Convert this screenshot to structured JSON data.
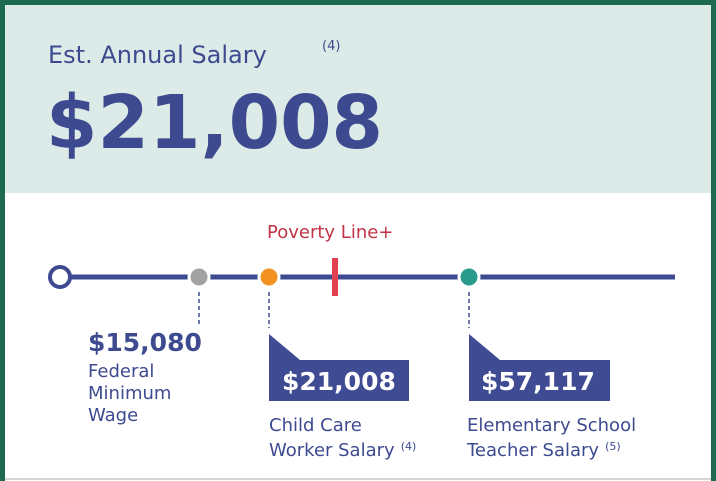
{
  "header": {
    "title": "Est. Annual Salary",
    "title_note": "(4)",
    "amount": "$21,008"
  },
  "poverty_line": "Poverty Line+",
  "markers": [
    {
      "amount": "$15,080",
      "label_lines": [
        "Federal",
        "Minimum",
        "Wage"
      ]
    },
    {
      "amount": "$21,008",
      "label_lines": [
        "Child Care",
        "Worker Salary"
      ],
      "note": "(4)"
    },
    {
      "amount": "$57,117",
      "label_lines": [
        "Elementary School",
        "Teacher Salary"
      ],
      "note": "(5)"
    }
  ]
}
